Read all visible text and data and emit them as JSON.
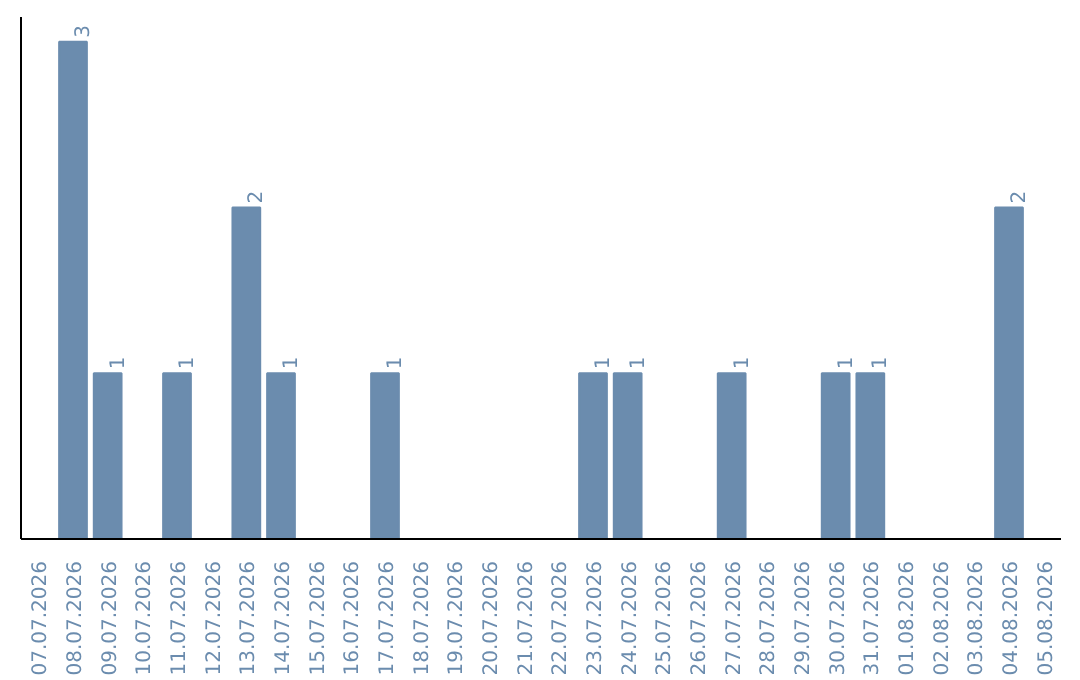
{
  "chart_data": {
    "type": "bar",
    "categories": [
      "07.07.2026",
      "08.07.2026",
      "09.07.2026",
      "10.07.2026",
      "11.07.2026",
      "12.07.2026",
      "13.07.2026",
      "14.07.2026",
      "15.07.2026",
      "16.07.2026",
      "17.07.2026",
      "18.07.2026",
      "19.07.2026",
      "20.07.2026",
      "21.07.2026",
      "22.07.2026",
      "23.07.2026",
      "24.07.2026",
      "25.07.2026",
      "26.07.2026",
      "27.07.2026",
      "28.07.2026",
      "29.07.2026",
      "30.07.2026",
      "31.07.2026",
      "01.08.2026",
      "02.08.2026",
      "03.08.2026",
      "04.08.2026",
      "05.08.2026"
    ],
    "values": [
      0,
      3,
      1,
      0,
      1,
      0,
      2,
      1,
      0,
      0,
      1,
      0,
      0,
      0,
      0,
      0,
      1,
      1,
      0,
      0,
      1,
      0,
      0,
      1,
      1,
      0,
      0,
      0,
      2,
      0
    ],
    "value_labels": [
      null,
      "3",
      "1",
      null,
      "1",
      null,
      "2",
      "1",
      null,
      null,
      "1",
      null,
      null,
      null,
      null,
      null,
      "1",
      "1",
      null,
      null,
      "1",
      null,
      null,
      "1",
      "1",
      null,
      null,
      null,
      "2",
      null
    ],
    "color": "#6b8cae",
    "ylim": [
      0,
      3.15
    ],
    "tick_labels": "x",
    "grid": false
  }
}
